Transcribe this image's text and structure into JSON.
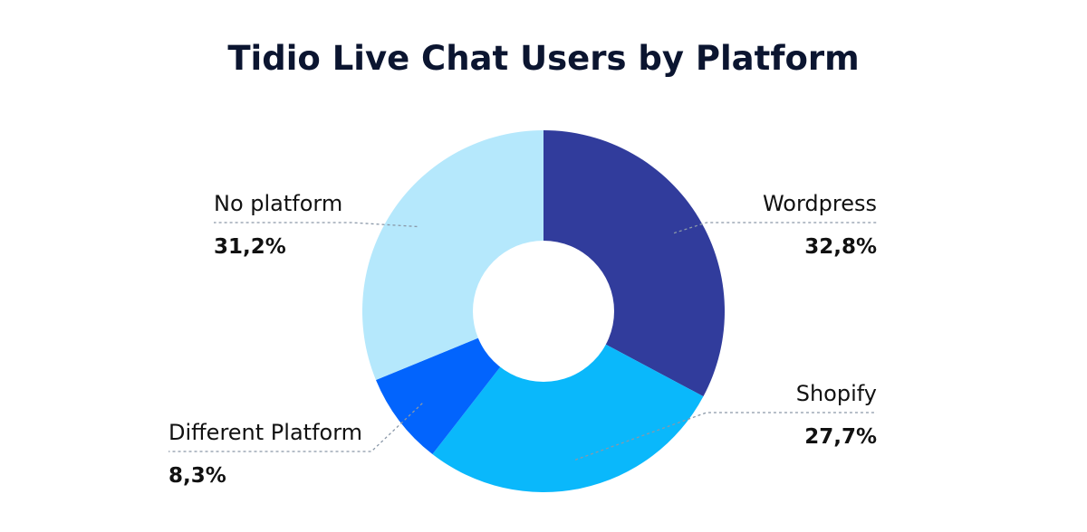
{
  "chart_data": {
    "type": "pie",
    "title": "Tidio Live Chat Users by Platform",
    "categories": [
      "Wordpress",
      "Shopify",
      "Different Platform",
      "No platform"
    ],
    "values": [
      32.8,
      27.7,
      8.3,
      31.2
    ],
    "value_labels": [
      "32,8%",
      "27,7%",
      "8,3%",
      "31,2%"
    ],
    "colors": [
      "#313c9c",
      "#0ab8fb",
      "#0264fd",
      "#b5e8fc"
    ],
    "donut": true,
    "legend": "none"
  }
}
